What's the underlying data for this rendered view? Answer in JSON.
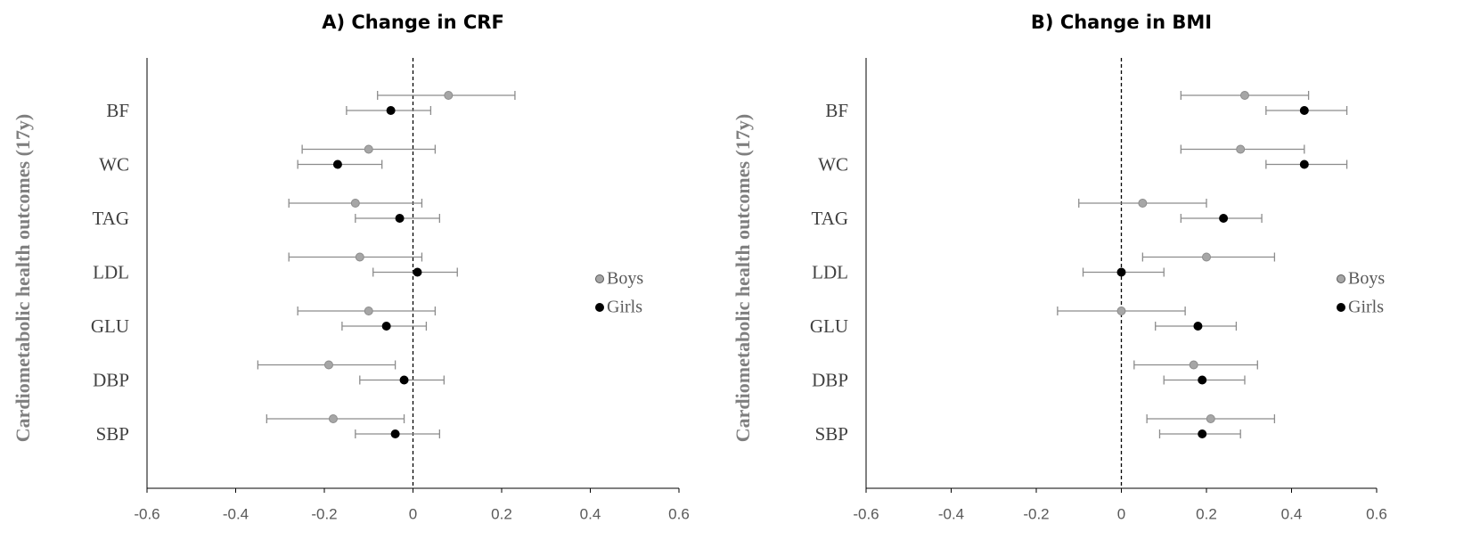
{
  "chart_data": [
    {
      "type": "errorbar",
      "title": "A) Change in CRF",
      "y_label": "Cardiometabolic health outcomes (17y)",
      "categories": [
        "BF",
        "WC",
        "TAG",
        "LDL",
        "GLU",
        "DBP",
        "SBP"
      ],
      "series": [
        {
          "name": "Boys",
          "color": "#a6a6a6",
          "values": [
            0.08,
            -0.1,
            -0.13,
            -0.12,
            -0.1,
            -0.19,
            -0.18
          ],
          "lower": [
            -0.08,
            -0.25,
            -0.28,
            -0.28,
            -0.26,
            -0.35,
            -0.33
          ],
          "upper": [
            0.23,
            0.05,
            0.02,
            0.02,
            0.05,
            -0.04,
            -0.02
          ]
        },
        {
          "name": "Girls",
          "color": "#000000",
          "values": [
            -0.05,
            -0.17,
            -0.03,
            0.01,
            -0.06,
            -0.02,
            -0.04
          ],
          "lower": [
            -0.15,
            -0.26,
            -0.13,
            -0.09,
            -0.16,
            -0.12,
            -0.13
          ],
          "upper": [
            0.04,
            -0.07,
            0.06,
            0.1,
            0.03,
            0.07,
            0.06
          ]
        }
      ],
      "xlim": [
        -0.6,
        0.6
      ],
      "xticks": [
        -0.6,
        -0.4,
        -0.2,
        0,
        0.2,
        0.4,
        0.6
      ],
      "reference_line": 0,
      "legend": "right"
    },
    {
      "type": "errorbar",
      "title": "B) Change in BMI",
      "y_label": "Cardiometabolic health outcomes (17y)",
      "categories": [
        "BF",
        "WC",
        "TAG",
        "LDL",
        "GLU",
        "DBP",
        "SBP"
      ],
      "series": [
        {
          "name": "Boys",
          "color": "#a6a6a6",
          "values": [
            0.29,
            0.28,
            0.05,
            0.2,
            0,
            0.17,
            0.21
          ],
          "lower": [
            0.14,
            0.14,
            -0.1,
            0.05,
            -0.15,
            0.03,
            0.06
          ],
          "upper": [
            0.44,
            0.43,
            0.2,
            0.36,
            0.15,
            0.32,
            0.36
          ]
        },
        {
          "name": "Girls",
          "color": "#000000",
          "values": [
            0.43,
            0.43,
            0.24,
            0,
            0.18,
            0.19,
            0.19
          ],
          "lower": [
            0.34,
            0.34,
            0.14,
            -0.09,
            0.08,
            0.1,
            0.09
          ],
          "upper": [
            0.53,
            0.53,
            0.33,
            0.1,
            0.27,
            0.29,
            0.28
          ]
        }
      ],
      "xlim": [
        -0.6,
        0.6
      ],
      "xticks": [
        -0.6,
        -0.4,
        -0.2,
        0,
        0.2,
        0.4,
        0.6
      ],
      "reference_line": 0,
      "legend": "right"
    }
  ]
}
